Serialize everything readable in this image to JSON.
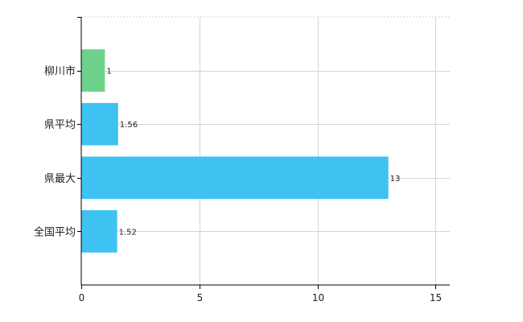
{
  "chart_data": {
    "type": "bar",
    "orientation": "horizontal",
    "categories": [
      "柳川市",
      "県平均",
      "県最大",
      "全国平均"
    ],
    "values": [
      1,
      1.56,
      13,
      1.52
    ],
    "data_labels": [
      "1",
      "1.56",
      "13",
      "1.52"
    ],
    "bar_colors": [
      "#6dd18a",
      "#3ec2f2",
      "#3ec2f2",
      "#3ec2f2"
    ],
    "xlim": [
      0,
      15.6
    ],
    "xticks": [
      0,
      5,
      10,
      15
    ],
    "xtick_labels": [
      "0",
      "5",
      "10",
      "15"
    ],
    "grid": true,
    "grid_color": "#d4d4d4",
    "axis_color": "#000000",
    "title": "",
    "xlabel": "",
    "ylabel": ""
  }
}
